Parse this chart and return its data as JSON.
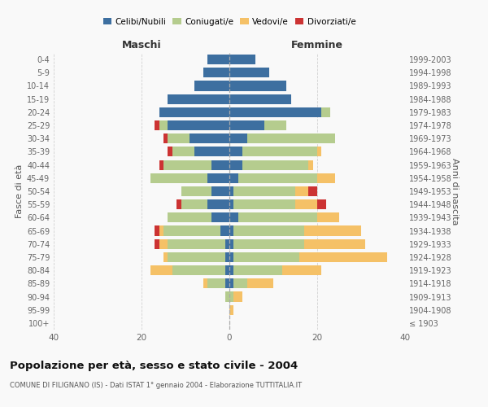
{
  "age_groups": [
    "100+",
    "95-99",
    "90-94",
    "85-89",
    "80-84",
    "75-79",
    "70-74",
    "65-69",
    "60-64",
    "55-59",
    "50-54",
    "45-49",
    "40-44",
    "35-39",
    "30-34",
    "25-29",
    "20-24",
    "15-19",
    "10-14",
    "5-9",
    "0-4"
  ],
  "birth_years": [
    "≤ 1903",
    "1904-1908",
    "1909-1913",
    "1914-1918",
    "1919-1923",
    "1924-1928",
    "1929-1933",
    "1934-1938",
    "1939-1943",
    "1944-1948",
    "1949-1953",
    "1954-1958",
    "1959-1963",
    "1964-1968",
    "1969-1973",
    "1974-1978",
    "1979-1983",
    "1984-1988",
    "1989-1993",
    "1994-1998",
    "1999-2003"
  ],
  "maschi": {
    "celibi": [
      0,
      0,
      0,
      1,
      1,
      1,
      1,
      2,
      4,
      5,
      4,
      5,
      4,
      8,
      9,
      14,
      16,
      14,
      8,
      6,
      5
    ],
    "coniugati": [
      0,
      0,
      1,
      4,
      12,
      13,
      13,
      13,
      10,
      6,
      7,
      13,
      11,
      5,
      5,
      2,
      0,
      0,
      0,
      0,
      0
    ],
    "vedovi": [
      0,
      0,
      0,
      1,
      5,
      1,
      2,
      1,
      0,
      0,
      0,
      0,
      0,
      0,
      0,
      0,
      0,
      0,
      0,
      0,
      0
    ],
    "divorziati": [
      0,
      0,
      0,
      0,
      0,
      0,
      1,
      1,
      0,
      1,
      0,
      0,
      1,
      1,
      1,
      1,
      0,
      0,
      0,
      0,
      0
    ]
  },
  "femmine": {
    "nubili": [
      0,
      0,
      0,
      1,
      1,
      1,
      1,
      1,
      2,
      1,
      1,
      2,
      3,
      3,
      4,
      8,
      21,
      14,
      13,
      9,
      6
    ],
    "coniugate": [
      0,
      0,
      1,
      3,
      11,
      15,
      16,
      16,
      18,
      14,
      14,
      18,
      15,
      17,
      20,
      5,
      2,
      0,
      0,
      0,
      0
    ],
    "vedove": [
      0,
      1,
      2,
      6,
      9,
      20,
      14,
      13,
      5,
      5,
      3,
      4,
      1,
      1,
      0,
      0,
      0,
      0,
      0,
      0,
      0
    ],
    "divorziate": [
      0,
      0,
      0,
      0,
      0,
      0,
      0,
      0,
      0,
      2,
      2,
      0,
      0,
      0,
      0,
      0,
      0,
      0,
      0,
      0,
      0
    ]
  },
  "colors": {
    "celibi": "#3d6fa0",
    "coniugati": "#b5cc8e",
    "vedovi": "#f5c167",
    "divorziati": "#cc3333"
  },
  "title": "Popolazione per età, sesso e stato civile - 2004",
  "subtitle": "COMUNE DI FILIGNANO (IS) - Dati ISTAT 1° gennaio 2004 - Elaborazione TUTTITALIA.IT",
  "xlabel_left": "Maschi",
  "xlabel_right": "Femmine",
  "ylabel_left": "Fasce di età",
  "ylabel_right": "Anni di nascita",
  "xlim": 40,
  "background_color": "#f9f9f9",
  "grid_color": "#cccccc"
}
